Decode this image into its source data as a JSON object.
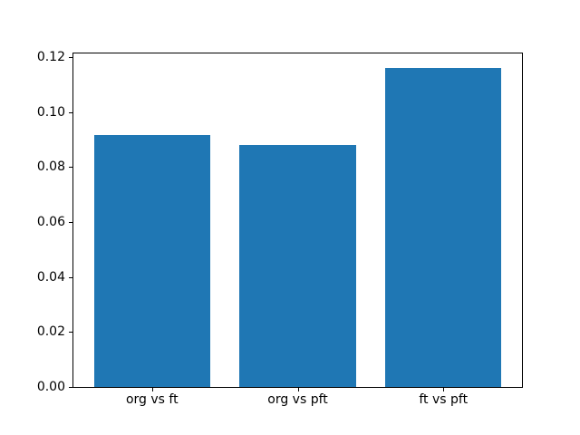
{
  "chart_data": {
    "type": "bar",
    "title": "",
    "xlabel": "",
    "ylabel": "",
    "categories": [
      "org vs ft",
      "org vs pft",
      "ft vs pft"
    ],
    "values": [
      0.0915,
      0.088,
      0.116
    ],
    "bar_color": "#1f77b4",
    "background_color": "#ffffff",
    "bar_width": 0.8,
    "xlim": [
      -0.54,
      2.54
    ],
    "ylim": [
      0,
      0.1213
    ],
    "yticks": [
      0,
      0.02,
      0.04,
      0.06,
      0.08,
      0.1,
      0.12
    ],
    "ytick_labels": [
      "0.00",
      "0.02",
      "0.04",
      "0.06",
      "0.08",
      "0.10",
      "0.12"
    ],
    "grid": false,
    "legend": "none"
  }
}
